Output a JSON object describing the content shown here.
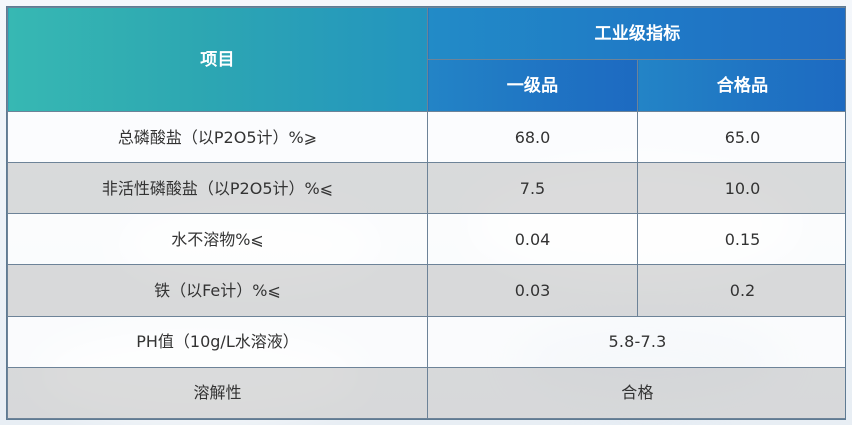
{
  "table": {
    "header": {
      "item": "项目",
      "group": "工业级指标",
      "grade1": "一级品",
      "grade2": "合格品"
    },
    "rows": [
      {
        "item": "总磷酸盐（以P2O5计）%⩾",
        "grade1": "68.0",
        "grade2": "65.0"
      },
      {
        "item": "非活性磷酸盐（以P2O5计）%⩽",
        "grade1": "7.5",
        "grade2": "10.0"
      },
      {
        "item": "水不溶物%⩽",
        "grade1": "0.04",
        "grade2": "0.15"
      },
      {
        "item": "铁（以Fe计）%⩽",
        "grade1": "0.03",
        "grade2": "0.2"
      },
      {
        "item": "PH值（10g/L水溶液）",
        "merged": "5.8-7.3"
      },
      {
        "item": "溶解性",
        "merged": "合格"
      }
    ]
  },
  "colors": {
    "header_left": "#37b8b3",
    "header_right": "#1f6cc2",
    "row_gray": "#d2d2d2",
    "row_white": "#ffffff",
    "border": "#6d8398",
    "text": "#333333"
  }
}
